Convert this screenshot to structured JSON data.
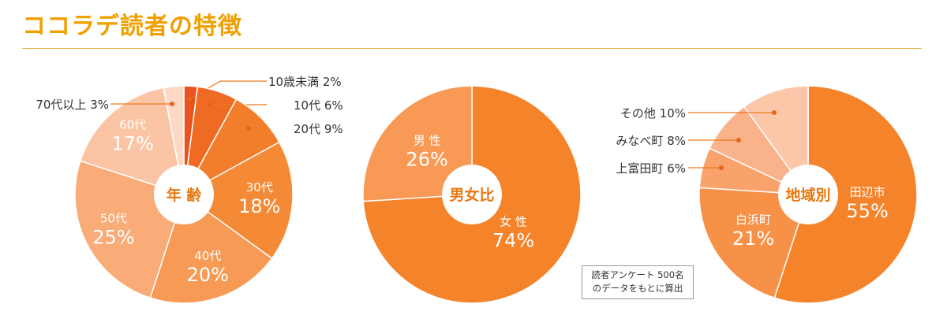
{
  "title": "ココラデ読者の特徴",
  "note": {
    "line1": "読者アンケート 500名",
    "line2": "のデータをもとに算出"
  },
  "colors": {
    "title": "#f0a000",
    "rule": "#e8b34a",
    "label_text": "#333333",
    "inner_label": "#ffffff",
    "leader_line": "#ec7a1e",
    "leader_dot": "#e8641e"
  },
  "chart_data": [
    {
      "type": "pie",
      "center_label": "年 齢",
      "slices": [
        {
          "label": "10歳未満",
          "value": 2,
          "value_text": "2%",
          "color": "#e8521c",
          "label_position": "outside"
        },
        {
          "label": "10代",
          "value": 6,
          "value_text": "6%",
          "color": "#ef6a22",
          "label_position": "outside"
        },
        {
          "label": "20代",
          "value": 9,
          "value_text": "9%",
          "color": "#f27e2c",
          "label_position": "outside"
        },
        {
          "label": "30代",
          "value": 18,
          "value_text": "18%",
          "color": "#f58a36",
          "label_position": "inside"
        },
        {
          "label": "40代",
          "value": 20,
          "value_text": "20%",
          "color": "#f79a55",
          "label_position": "inside"
        },
        {
          "label": "50代",
          "value": 25,
          "value_text": "25%",
          "color": "#f9ab78",
          "label_position": "inside"
        },
        {
          "label": "60代",
          "value": 17,
          "value_text": "17%",
          "color": "#fbc4a4",
          "label_position": "inside"
        },
        {
          "label": "70代以上",
          "value": 3,
          "value_text": "3%",
          "color": "#fdd9c5",
          "label_position": "outside"
        }
      ]
    },
    {
      "type": "pie",
      "center_label": "男女比",
      "slices": [
        {
          "label": "女 性",
          "value": 74,
          "value_text": "74%",
          "color": "#f5832a",
          "label_position": "inside"
        },
        {
          "label": "男 性",
          "value": 26,
          "value_text": "26%",
          "color": "#f89a55",
          "label_position": "inside"
        }
      ]
    },
    {
      "type": "pie",
      "center_label": "地域別",
      "slices": [
        {
          "label": "田辺市",
          "value": 55,
          "value_text": "55%",
          "color": "#f5832a",
          "label_position": "inside"
        },
        {
          "label": "白浜町",
          "value": 21,
          "value_text": "21%",
          "color": "#f79147",
          "label_position": "inside"
        },
        {
          "label": "上富田町",
          "value": 6,
          "value_text": "6%",
          "color": "#f9a26c",
          "label_position": "outside"
        },
        {
          "label": "みなべ町",
          "value": 8,
          "value_text": "8%",
          "color": "#fab28a",
          "label_position": "outside"
        },
        {
          "label": "その他",
          "value": 10,
          "value_text": "10%",
          "color": "#fcc6a9",
          "label_position": "outside"
        }
      ]
    }
  ]
}
